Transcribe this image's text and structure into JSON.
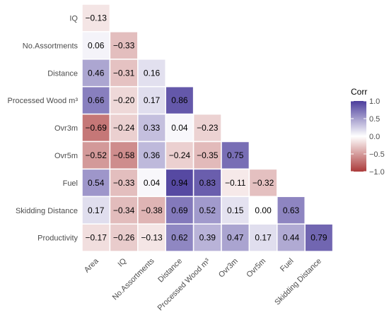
{
  "chart_data": {
    "type": "heatmap",
    "row_labels": [
      "IQ",
      "No.Assortments",
      "Distance",
      "Processed Wood m³",
      "Ovr3m",
      "Ovr5m",
      "Fuel",
      "Skidding Distance",
      "Productivity"
    ],
    "col_labels": [
      "Area",
      "IQ",
      "No.Assortments",
      "Distance",
      "Processed Wood m³",
      "Ovr3m",
      "Ovr5m",
      "Fuel",
      "Skidding Distance"
    ],
    "values": [
      [
        "−0.13"
      ],
      [
        "0.06",
        "−0.33"
      ],
      [
        "0.46",
        "−0.31",
        "0.16"
      ],
      [
        "0.66",
        "−0.20",
        "0.17",
        "0.86"
      ],
      [
        "−0.69",
        "−0.24",
        "0.33",
        "0.04",
        "−0.23"
      ],
      [
        "−0.52",
        "−0.58",
        "0.36",
        "−0.24",
        "−0.35",
        "0.75"
      ],
      [
        "0.54",
        "−0.33",
        "0.04",
        "0.94",
        "0.83",
        "−0.11",
        "−0.32"
      ],
      [
        "0.17",
        "−0.34",
        "−0.38",
        "0.69",
        "0.52",
        "0.15",
        "0.00",
        "0.63"
      ],
      [
        "−0.17",
        "−0.26",
        "−0.13",
        "0.62",
        "0.39",
        "0.47",
        "0.17",
        "0.44",
        "0.79"
      ]
    ],
    "legend": {
      "title": "Corr",
      "ticks": [
        "1.0",
        "0.5",
        "0.0",
        "−0.5",
        "−1.0"
      ],
      "tick_values": [
        1.0,
        0.5,
        0.0,
        -0.5,
        -1.0
      ],
      "placement": "right",
      "range": [
        -1,
        1
      ]
    },
    "colors": {
      "high": "#4b3d9c",
      "mid": "#ffffff",
      "low": "#ab3a3a",
      "cell_border": "#ffffff"
    }
  }
}
